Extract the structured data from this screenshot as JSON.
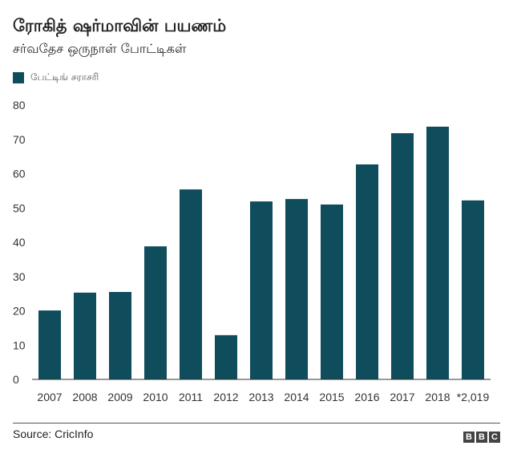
{
  "chart_data": {
    "type": "bar",
    "title": "ரோகித் ஷர்மாவின் பயணம்",
    "subtitle": "சர்வதேச ஒருநாள் போட்டிகள்",
    "legend": "பேட்டிங் சராசரி",
    "categories": [
      "2007",
      "2008",
      "2009",
      "2010",
      "2011",
      "2012",
      "2013",
      "2014",
      "2015",
      "2016",
      "2017",
      "2018",
      "*2,019"
    ],
    "values": [
      20.1,
      25.3,
      25.5,
      38.8,
      55.4,
      12.9,
      51.9,
      52.6,
      51.0,
      62.7,
      71.8,
      73.7,
      52.2
    ],
    "ylim": [
      0,
      80
    ],
    "yticks": [
      0,
      10,
      20,
      30,
      40,
      50,
      60,
      70,
      80
    ],
    "xlabel": "",
    "ylabel": "",
    "color": "#0f4c5c"
  },
  "source": "Source: CricInfo",
  "logo": [
    "B",
    "B",
    "C"
  ]
}
